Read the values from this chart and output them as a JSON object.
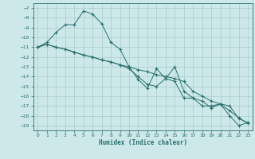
{
  "xlabel": "Humidex (Indice chaleur)",
  "background_color": "#cce8e8",
  "grid_color": "#aacccc",
  "line_color": "#2a6e6e",
  "xlim": [
    -0.5,
    23.5
  ],
  "ylim": [
    -19.5,
    -6.5
  ],
  "yticks": [
    -7,
    -8,
    -9,
    -10,
    -11,
    -12,
    -13,
    -14,
    -15,
    -16,
    -17,
    -18,
    -19
  ],
  "xticks": [
    0,
    1,
    2,
    3,
    4,
    5,
    6,
    7,
    8,
    9,
    10,
    11,
    12,
    13,
    14,
    15,
    16,
    17,
    18,
    19,
    20,
    21,
    22,
    23
  ],
  "line1_x": [
    0,
    1,
    2,
    3,
    4,
    5,
    6,
    7,
    8,
    9,
    10,
    11,
    12,
    13,
    14,
    15,
    16,
    17,
    18,
    19,
    20,
    21,
    22,
    23
  ],
  "line1_y": [
    -11.0,
    -10.5,
    -9.5,
    -8.7,
    -8.7,
    -7.3,
    -7.6,
    -8.6,
    -10.5,
    -11.2,
    -13.0,
    -14.3,
    -15.2,
    -13.2,
    -14.2,
    -13.0,
    -15.5,
    -16.2,
    -16.5,
    -17.2,
    -16.8,
    -18.0,
    -19.0,
    -18.7
  ],
  "line2_x": [
    0,
    1,
    2,
    3,
    4,
    5,
    6,
    7,
    8,
    9,
    10,
    11,
    12,
    13,
    14,
    15,
    16,
    17,
    18,
    19,
    20,
    21,
    22,
    23
  ],
  "line2_y": [
    -11.0,
    -10.7,
    -11.0,
    -11.2,
    -11.5,
    -11.8,
    -12.0,
    -12.3,
    -12.5,
    -12.8,
    -13.0,
    -13.3,
    -13.5,
    -13.8,
    -14.0,
    -14.2,
    -14.5,
    -15.5,
    -16.0,
    -16.5,
    -16.8,
    -17.0,
    -18.3,
    -18.7
  ],
  "line3_x": [
    0,
    1,
    2,
    3,
    4,
    5,
    6,
    7,
    8,
    9,
    10,
    11,
    12,
    13,
    14,
    15,
    16,
    17,
    18,
    19,
    20,
    21,
    22,
    23
  ],
  "line3_y": [
    -11.0,
    -10.7,
    -11.0,
    -11.2,
    -11.5,
    -11.8,
    -12.0,
    -12.3,
    -12.5,
    -12.8,
    -13.2,
    -14.0,
    -14.8,
    -15.0,
    -14.2,
    -14.5,
    -16.2,
    -16.2,
    -17.0,
    -17.0,
    -16.8,
    -17.5,
    -18.2,
    -18.8
  ]
}
